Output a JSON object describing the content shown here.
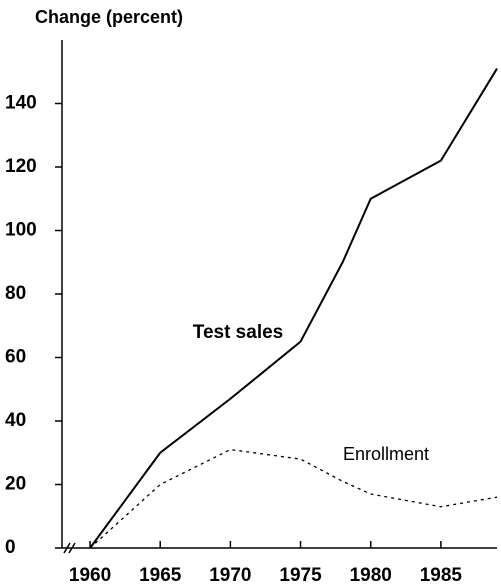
{
  "chart_data": {
    "type": "line",
    "y_axis_label": "Change (percent)",
    "x": [
      1960,
      1965,
      1970,
      1975,
      1978,
      1980,
      1985,
      1989
    ],
    "series": [
      {
        "name": "Test sales",
        "color": "#000000",
        "dash": "solid",
        "values": [
          0,
          30,
          47,
          65,
          90,
          110,
          122,
          151
        ]
      },
      {
        "name": "Enrollment",
        "color": "#000000",
        "dash": "dotted",
        "values": [
          0,
          20,
          31,
          28,
          21,
          17,
          13,
          16
        ]
      }
    ],
    "xlim": [
      1958,
      1989
    ],
    "xticks": [
      1960,
      1965,
      1970,
      1975,
      1980,
      1985
    ],
    "ylim": [
      0,
      160
    ],
    "yticks": [
      0,
      20,
      40,
      60,
      80,
      100,
      120,
      140
    ],
    "grid": false
  }
}
